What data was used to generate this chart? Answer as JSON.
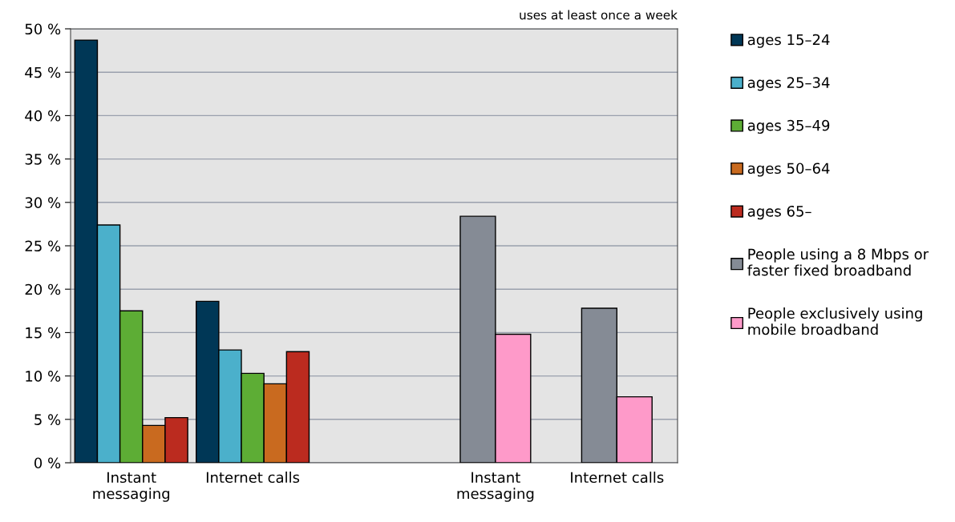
{
  "chart_data": {
    "type": "bar",
    "categories": [
      "Instant\nmessaging",
      "Internet calls",
      null,
      "Instant\nmessaging",
      "Internet calls"
    ],
    "series": [
      {
        "name": "ages 15–24",
        "color": "#003756",
        "values": [
          48.7,
          18.6,
          null,
          null,
          null
        ]
      },
      {
        "name": "ages 25–34",
        "color": "#4bb0cb",
        "values": [
          27.4,
          13.0,
          null,
          null,
          null
        ]
      },
      {
        "name": "ages 35–49",
        "color": "#5dad35",
        "values": [
          17.5,
          10.3,
          null,
          null,
          null
        ]
      },
      {
        "name": "ages 50–64",
        "color": "#c96a1f",
        "values": [
          4.3,
          9.1,
          null,
          null,
          null
        ]
      },
      {
        "name": "ages 65–",
        "color": "#bb2b1f",
        "values": [
          5.2,
          12.8,
          null,
          null,
          null
        ]
      },
      {
        "name": "People using a 8 Mbps or\nfaster fixed broadband",
        "color": "#858b95",
        "values": [
          null,
          null,
          null,
          28.4,
          17.8
        ]
      },
      {
        "name": "People exclusively using\nmobile broadband",
        "color": "#fe9ac9",
        "values": [
          null,
          null,
          null,
          14.8,
          7.6
        ]
      }
    ],
    "ylim": [
      0,
      50
    ],
    "yticks": [
      {
        "value": 0,
        "label": "0 %"
      },
      {
        "value": 5,
        "label": "5 %"
      },
      {
        "value": 10,
        "label": "10 %"
      },
      {
        "value": 15,
        "label": "15 %"
      },
      {
        "value": 20,
        "label": "20 %"
      },
      {
        "value": 25,
        "label": "25 %"
      },
      {
        "value": 30,
        "label": "30 %"
      },
      {
        "value": 35,
        "label": "35 %"
      },
      {
        "value": 40,
        "label": "40 %"
      },
      {
        "value": 45,
        "label": "45 %"
      },
      {
        "value": 50,
        "label": "50 %"
      }
    ],
    "grid": "y",
    "legend": "right",
    "annotations": [
      "uses at least once a week"
    ]
  }
}
